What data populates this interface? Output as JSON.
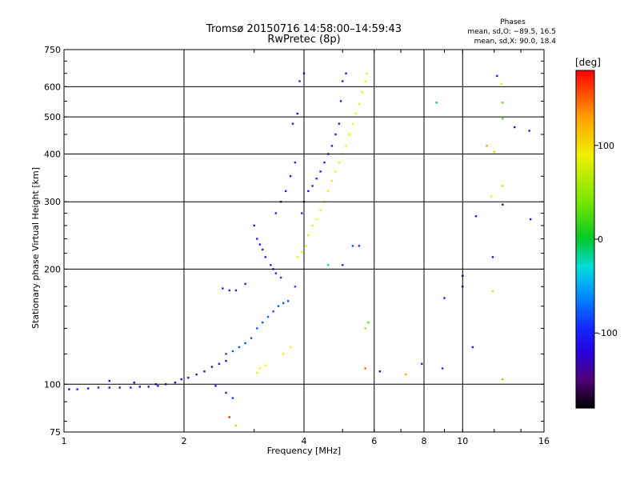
{
  "chart_data": {
    "type": "scatter",
    "title": "Tromsø 20150716 14:58:00–14:59:43",
    "subtitle": "RwPretec (8p)",
    "xlabel": "Frequency [MHz]",
    "ylabel": "Stationary phase Virtual Height [km]",
    "x_scale": "log",
    "y_scale": "log",
    "xlim": [
      1,
      16
    ],
    "ylim": [
      75,
      750
    ],
    "x_ticks": [
      1,
      2,
      4,
      6,
      8,
      10,
      16
    ],
    "y_ticks": [
      75,
      100,
      200,
      300,
      400,
      500,
      600,
      750
    ],
    "grid": true,
    "phases_box": {
      "title": "Phases",
      "line_o": "mean, sd,O: −89.5, 16.5",
      "line_x": "mean, sd,X:  90.0, 18.4"
    },
    "colorbar": {
      "label": "[deg]",
      "ticks": [
        100,
        0,
        -100
      ],
      "range": [
        -180,
        180
      ]
    },
    "series": [
      {
        "phase": -110,
        "points": [
          [
            1.03,
            97
          ],
          [
            1.08,
            97
          ],
          [
            1.15,
            97.5
          ],
          [
            1.22,
            98
          ],
          [
            1.3,
            98
          ],
          [
            1.38,
            98
          ],
          [
            1.47,
            98
          ],
          [
            1.55,
            98.5
          ],
          [
            1.63,
            98.5
          ],
          [
            1.72,
            99
          ],
          [
            1.8,
            100
          ],
          [
            1.9,
            101
          ],
          [
            1.97,
            103
          ],
          [
            2.05,
            104
          ],
          [
            2.15,
            106
          ],
          [
            2.25,
            108
          ],
          [
            2.35,
            111
          ],
          [
            2.45,
            113
          ],
          [
            2.55,
            115
          ]
        ]
      },
      {
        "phase": -100,
        "points": [
          [
            2.5,
            178
          ],
          [
            2.6,
            176
          ],
          [
            2.7,
            176
          ],
          [
            2.85,
            183
          ],
          [
            3.0,
            260
          ],
          [
            3.05,
            240
          ],
          [
            3.1,
            232
          ],
          [
            3.15,
            225
          ],
          [
            3.2,
            215
          ],
          [
            3.3,
            205
          ],
          [
            3.35,
            200
          ],
          [
            3.4,
            195
          ],
          [
            3.5,
            190
          ],
          [
            3.4,
            280
          ],
          [
            3.5,
            300
          ],
          [
            3.6,
            320
          ],
          [
            3.7,
            350
          ],
          [
            3.8,
            380
          ],
          [
            3.75,
            480
          ],
          [
            3.85,
            510
          ],
          [
            3.9,
            620
          ],
          [
            4.0,
            650
          ],
          [
            3.95,
            280
          ],
          [
            4.0,
            300
          ],
          [
            4.1,
            320
          ],
          [
            4.2,
            330
          ],
          [
            4.3,
            345
          ],
          [
            4.4,
            360
          ],
          [
            4.5,
            380
          ],
          [
            4.6,
            400
          ],
          [
            4.7,
            420
          ],
          [
            4.8,
            450
          ],
          [
            4.9,
            480
          ],
          [
            4.95,
            550
          ],
          [
            5.0,
            620
          ],
          [
            5.1,
            650
          ]
        ]
      },
      {
        "phase": -80,
        "points": [
          [
            2.55,
            120
          ],
          [
            2.65,
            122
          ],
          [
            2.75,
            125
          ],
          [
            2.85,
            128
          ],
          [
            2.95,
            132
          ],
          [
            3.05,
            140
          ],
          [
            3.15,
            145
          ],
          [
            3.25,
            150
          ],
          [
            3.35,
            155
          ],
          [
            3.45,
            160
          ],
          [
            3.55,
            163
          ],
          [
            3.65,
            165
          ],
          [
            3.8,
            180
          ]
        ]
      },
      {
        "phase": 90,
        "points": [
          [
            3.05,
            107
          ],
          [
            3.1,
            110
          ],
          [
            3.2,
            112
          ],
          [
            3.55,
            120
          ],
          [
            3.7,
            125
          ],
          [
            3.85,
            215
          ],
          [
            3.95,
            222
          ],
          [
            4.05,
            230
          ],
          [
            4.1,
            245
          ],
          [
            4.2,
            260
          ],
          [
            4.3,
            270
          ],
          [
            4.4,
            285
          ],
          [
            4.5,
            300
          ],
          [
            4.6,
            320
          ],
          [
            4.7,
            340
          ],
          [
            4.8,
            360
          ],
          [
            4.9,
            380
          ],
          [
            5.0,
            400
          ],
          [
            5.1,
            420
          ],
          [
            5.2,
            450
          ],
          [
            5.3,
            480
          ],
          [
            5.4,
            510
          ],
          [
            5.5,
            540
          ],
          [
            5.6,
            580
          ],
          [
            5.7,
            620
          ],
          [
            5.75,
            650
          ]
        ]
      }
    ],
    "scattered_points": [
      {
        "x": 12.2,
        "y": 640,
        "phase": -110
      },
      {
        "x": 12.5,
        "y": 610,
        "phase": 90
      },
      {
        "x": 8.6,
        "y": 545,
        "phase": -20
      },
      {
        "x": 12.6,
        "y": 545,
        "phase": 30
      },
      {
        "x": 12.6,
        "y": 495,
        "phase": 30
      },
      {
        "x": 13.5,
        "y": 470,
        "phase": -120
      },
      {
        "x": 14.7,
        "y": 460,
        "phase": -110
      },
      {
        "x": 11.5,
        "y": 420,
        "phase": 130
      },
      {
        "x": 12.0,
        "y": 405,
        "phase": 110
      },
      {
        "x": 12.6,
        "y": 330,
        "phase": 70
      },
      {
        "x": 11.8,
        "y": 310,
        "phase": 90
      },
      {
        "x": 12.6,
        "y": 295,
        "phase": -120
      },
      {
        "x": 10.8,
        "y": 275,
        "phase": -100
      },
      {
        "x": 14.8,
        "y": 270,
        "phase": -110
      },
      {
        "x": 11.9,
        "y": 215,
        "phase": -110
      },
      {
        "x": 10.0,
        "y": 192,
        "phase": -120
      },
      {
        "x": 10.0,
        "y": 180,
        "phase": -120
      },
      {
        "x": 11.9,
        "y": 175,
        "phase": 80
      },
      {
        "x": 9.0,
        "y": 168,
        "phase": -100
      },
      {
        "x": 10.6,
        "y": 125,
        "phase": -110
      },
      {
        "x": 7.9,
        "y": 113,
        "phase": -110
      },
      {
        "x": 8.9,
        "y": 110,
        "phase": -100
      },
      {
        "x": 7.2,
        "y": 106,
        "phase": 120
      },
      {
        "x": 12.6,
        "y": 103,
        "phase": 40
      },
      {
        "x": 6.2,
        "y": 108,
        "phase": -130
      },
      {
        "x": 5.7,
        "y": 110,
        "phase": 150
      },
      {
        "x": 5.7,
        "y": 140,
        "phase": 60
      },
      {
        "x": 5.8,
        "y": 145,
        "phase": 30
      },
      {
        "x": 5.5,
        "y": 230,
        "phase": -90
      },
      {
        "x": 5.3,
        "y": 230,
        "phase": -80
      },
      {
        "x": 5.0,
        "y": 205,
        "phase": -90
      },
      {
        "x": 4.6,
        "y": 205,
        "phase": -30
      },
      {
        "x": 2.4,
        "y": 99,
        "phase": -110
      },
      {
        "x": 2.55,
        "y": 95,
        "phase": -100
      },
      {
        "x": 2.65,
        "y": 92,
        "phase": -90
      },
      {
        "x": 2.6,
        "y": 82,
        "phase": 170
      },
      {
        "x": 2.7,
        "y": 78,
        "phase": 60
      },
      {
        "x": 1.3,
        "y": 102,
        "phase": -110
      },
      {
        "x": 1.5,
        "y": 101,
        "phase": -110
      },
      {
        "x": 1.7,
        "y": 100,
        "phase": -110
      }
    ]
  }
}
